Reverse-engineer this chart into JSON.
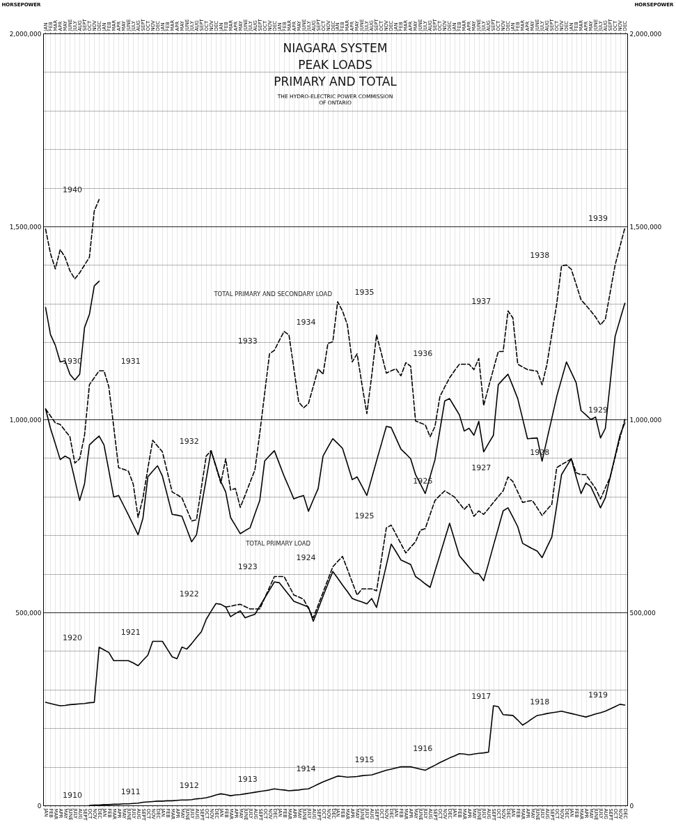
{
  "chart_data": {
    "type": "line",
    "title": "NIAGARA SYSTEM\nPEAK LOADS\nPRIMARY AND TOTAL",
    "subtitle": "THE HYDRO-ELECTRIC POWER COMMISSION\nOF ONTARIO",
    "ylabel": "HORSEPOWER",
    "y2label": "HORSEPOWER",
    "grid": true,
    "categories": [
      "JAN",
      "FEB",
      "MAR",
      "APR",
      "MAY",
      "JUNE",
      "JULY",
      "AUG",
      "SEPT",
      "OCT",
      "NOV",
      "DEC",
      "JAN",
      "FEB",
      "MAR",
      "APR",
      "MAY",
      "JUNE",
      "JULY",
      "AUG",
      "SEPT",
      "OCT",
      "NOV",
      "DEC",
      "JAN",
      "FEB",
      "MAR",
      "APR",
      "MAY",
      "JUNE",
      "JULY",
      "AUG",
      "SEPT",
      "OCT",
      "NOV",
      "DEC",
      "JAN",
      "FEB",
      "MAR",
      "APR",
      "MAY",
      "JUNE",
      "JULY",
      "AUG",
      "SEPT",
      "OCT",
      "NOV",
      "DEC",
      "JAN",
      "FEB",
      "MAR",
      "APR",
      "MAY",
      "JUNE",
      "JULY",
      "AUG",
      "SEPT",
      "OCT",
      "NOV",
      "DEC",
      "JAN",
      "FEB",
      "MAR",
      "APR",
      "MAY",
      "JUNE",
      "JULY",
      "AUG",
      "SEPT",
      "OCT",
      "NOV",
      "DEC",
      "JAN",
      "FEB",
      "MAR",
      "APR",
      "MAY",
      "JUNE",
      "JULY",
      "AUG",
      "SEPT",
      "OCT",
      "NOV",
      "DEC",
      "JAN",
      "FEB",
      "MAR",
      "APR",
      "MAY",
      "JUNE",
      "JULY",
      "AUG",
      "SEPT",
      "OCT",
      "NOV",
      "DEC",
      "JAN",
      "FEB",
      "MAR",
      "APR",
      "MAY",
      "JUNE",
      "JULY",
      "AUG",
      "SEPT",
      "OCT",
      "NOV",
      "DEC",
      "JAN",
      "FEB",
      "MAR",
      "APR",
      "MAY",
      "JUNE",
      "JULY",
      "AUG",
      "SEPT",
      "OCT",
      "NOV",
      "DEC"
    ],
    "ylim": [
      0,
      2000000
    ],
    "y2lim": [
      0,
      2000000
    ],
    "yticks": [
      0,
      {
        "value": 100000,
        "label": null
      },
      {
        "value": 200000,
        "label": null
      },
      {
        "value": 300000,
        "label": null
      },
      {
        "value": 400000,
        "label": null
      },
      {
        "value": 500000,
        "label": "500,000"
      },
      {
        "value": 600000,
        "label": null
      },
      {
        "value": 700000,
        "label": null
      },
      {
        "value": 800000,
        "label": null
      },
      {
        "value": 900000,
        "label": null
      },
      {
        "value": 1000000,
        "label": "1,000,000"
      },
      {
        "value": 1100000,
        "label": null
      },
      {
        "value": 1200000,
        "label": null
      },
      {
        "value": 1300000,
        "label": null
      },
      {
        "value": 1400000,
        "label": null
      },
      {
        "value": 1500000,
        "label": "1,500,000"
      },
      {
        "value": 1600000,
        "label": null
      },
      {
        "value": 1700000,
        "label": null
      },
      {
        "value": 1800000,
        "label": null
      },
      {
        "value": 1900000,
        "label": null
      },
      {
        "value": 2000000,
        "label": "2,000,000"
      }
    ],
    "y2ticks": [
      0,
      {
        "value": 100000,
        "label": null
      },
      {
        "value": 200000,
        "label": null
      },
      {
        "value": 300000,
        "label": null
      },
      {
        "value": 400000,
        "label": null
      },
      {
        "value": 500000,
        "label": "500,000"
      },
      {
        "value": 600000,
        "label": null
      },
      {
        "value": 700000,
        "label": null
      },
      {
        "value": 800000,
        "label": null
      },
      {
        "value": 900000,
        "label": null
      },
      {
        "value": 1000000,
        "label": "1,000,000"
      },
      {
        "value": 1100000,
        "label": null
      },
      {
        "value": 1200000,
        "label": null
      },
      {
        "value": 1300000,
        "label": null
      },
      {
        "value": 1400000,
        "label": null
      },
      {
        "value": 1500000,
        "label": "1,500,000"
      },
      {
        "value": 1600000,
        "label": null
      },
      {
        "value": 1700000,
        "label": null
      },
      {
        "value": 1800000,
        "label": null
      },
      {
        "value": 1900000,
        "label": null
      },
      {
        "value": 2000000,
        "label": "2,000,000"
      }
    ],
    "series": [
      {
        "color": "#000000",
        "line_style": "solid",
        "values": [
          null,
          null,
          null,
          null,
          null,
          null,
          null,
          null,
          null,
          0,
          1000,
          1000,
          2000,
          2000,
          3000,
          3000,
          4000,
          4000,
          5000,
          6000,
          8000,
          9000,
          10000,
          11000,
          11000,
          12000,
          12000,
          13000,
          14000,
          14000,
          15000,
          17000,
          18000,
          20000,
          23000,
          27000,
          30000,
          28000,
          25000,
          27000,
          28000,
          30000,
          32000,
          34000,
          36000,
          38000,
          40000,
          43000,
          41000,
          40000,
          38000,
          39000,
          40000,
          42000,
          43000,
          49000,
          55000,
          61000,
          66000,
          71000,
          76000,
          75000,
          73000,
          74000,
          75000,
          77000,
          78000,
          79000,
          83000,
          87000,
          91000,
          94000,
          97000,
          100000,
          100000,
          100000,
          97000,
          94000,
          91000,
          98000,
          104000,
          111000,
          117000,
          123000,
          128000,
          134000,
          133000,
          131000,
          133000,
          135000,
          136000,
          138000,
          258000,
          256000,
          235000,
          234000,
          233000,
          221000,
          208000,
          216000,
          225000,
          233000,
          235000,
          238000,
          240000,
          242000,
          244000,
          241000,
          238000,
          235000,
          232000,
          229000,
          233000,
          237000,
          240000,
          244000,
          250000,
          256000,
          262000,
          260000
        ]
      },
      {
        "color": "#000000",
        "line_style": "solid",
        "values": [
          267000,
          264000,
          261000,
          258000,
          259000,
          261000,
          262000,
          263000,
          264000,
          266000,
          267000,
          410000,
          403000,
          396000,
          375000,
          375000,
          375000,
          375000,
          369000,
          362000,
          376000,
          389000,
          425000,
          425000,
          425000,
          405000,
          385000,
          380000,
          410000,
          405000,
          419000,
          435000,
          450000,
          482000,
          503000,
          523000,
          521000,
          514000,
          489000,
          497000,
          504000,
          486000,
          491000,
          495000,
          516000,
          537000,
          558000,
          579000,
          577000,
          561000,
          545000,
          529000,
          524000,
          519000,
          514000,
          477000,
          509000,
          542000,
          574000,
          606000,
          589000,
          571000,
          554000,
          536000,
          531000,
          527000,
          522000,
          536000,
          513000,
          568000,
          622000,
          677000,
          657000,
          636000,
          630000,
          624000,
          593000,
          584000,
          574000,
          565000,
          607000,
          648000,
          690000,
          731000,
          689000,
          647000,
          632000,
          617000,
          602000,
          600000,
          582000,
          627000,
          673000,
          718000,
          763000,
          771000,
          747000,
          722000,
          679000,
          672000,
          665000,
          659000,
          642000,
          669000,
          695000,
          776000,
          857000,
          878000,
          898000,
          851000,
          808000,
          835000,
          826000,
          799000,
          771000,
          797000,
          851000,
          905000,
          959000,
          991000
        ]
      },
      {
        "color": "#000000",
        "line_style": "dashed",
        "values": [
          null,
          null,
          null,
          null,
          null,
          null,
          null,
          null,
          null,
          null,
          null,
          null,
          null,
          null,
          null,
          null,
          null,
          null,
          null,
          null,
          null,
          null,
          null,
          null,
          null,
          null,
          null,
          null,
          null,
          null,
          null,
          null,
          null,
          null,
          null,
          null,
          null,
          514000,
          516000,
          519000,
          521000,
          515000,
          509000,
          509000,
          509000,
          537000,
          565000,
          593000,
          593000,
          593000,
          569000,
          545000,
          540000,
          534000,
          510000,
          486000,
          519000,
          552000,
          585000,
          618000,
          632000,
          645000,
          612000,
          578000,
          545000,
          561000,
          561000,
          561000,
          556000,
          638000,
          719000,
          726000,
          702000,
          678000,
          654000,
          669000,
          683000,
          713000,
          717000,
          754000,
          790000,
          803000,
          815000,
          807000,
          799000,
          783000,
          767000,
          780000,
          749000,
          763000,
          754000,
          769000,
          785000,
          800000,
          815000,
          851000,
          839000,
          812000,
          785000,
          788000,
          790000,
          771000,
          751000,
          766000,
          780000,
          875000,
          883000,
          890000,
          898000,
          862000,
          857000,
          857000,
          839000,
          821000,
          794000,
          823000,
          851000,
          902000,
          952000,
          1000000
        ]
      },
      {
        "name": "TOTAL PRIMARY LOAD",
        "color": "#000000",
        "line_style": "solid",
        "values": [
          1027000,
          977000,
          937000,
          896000,
          905000,
          898000,
          844000,
          790000,
          833000,
          934000,
          946000,
          957000,
          934000,
          867000,
          799000,
          803000,
          778000,
          753000,
          727000,
          701000,
          744000,
          851000,
          866000,
          880000,
          853000,
          804000,
          754000,
          752000,
          749000,
          716000,
          683000,
          701000,
          774000,
          846000,
          919000,
          879000,
          839000,
          812000,
          746000,
          725000,
          704000,
          712000,
          719000,
          755000,
          790000,
          892000,
          906000,
          919000,
          886000,
          853000,
          824000,
          794000,
          799000,
          803000,
          762000,
          792000,
          821000,
          905000,
          928000,
          950000,
          938000,
          925000,
          885000,
          844000,
          851000,
          827000,
          803000,
          848000,
          893000,
          937000,
          982000,
          979000,
          951000,
          923000,
          911000,
          898000,
          857000,
          833000,
          808000,
          852000,
          896000,
          972000,
          1048000,
          1054000,
          1033000,
          1012000,
          970000,
          977000,
          959000,
          995000,
          916000,
          938000,
          959000,
          1090000,
          1104000,
          1117000,
          1086000,
          1054000,
          1002000,
          950000,
          951000,
          952000,
          892000,
          948000,
          1003000,
          1059000,
          1104000,
          1149000,
          1122000,
          1095000,
          1023000,
          1012000,
          1000000,
          1006000,
          952000,
          977000,
          1096000,
          1215000,
          1258000,
          1301000
        ]
      },
      {
        "name": "TOTAL PRIMARY AND SECONDARY LOAD",
        "color": "#000000",
        "line_style": "dashed",
        "values": [
          1027000,
          1009000,
          991000,
          987000,
          971000,
          955000,
          887000,
          898000,
          959000,
          1090000,
          1108000,
          1126000,
          1126000,
          1084000,
          980000,
          875000,
          871000,
          866000,
          833000,
          746000,
          797000,
          872000,
          946000,
          931000,
          916000,
          864000,
          812000,
          805000,
          797000,
          767000,
          737000,
          740000,
          823000,
          905000,
          919000,
          877000,
          835000,
          898000,
          817000,
          821000,
          772000,
          804000,
          837000,
          869000,
          964000,
          1067000,
          1170000,
          1179000,
          1204000,
          1228000,
          1219000,
          1132000,
          1045000,
          1030000,
          1041000,
          1086000,
          1131000,
          1117000,
          1197000,
          1201000,
          1305000,
          1281000,
          1245000,
          1149000,
          1170000,
          1090000,
          1015000,
          1114000,
          1219000,
          1170000,
          1120000,
          1126000,
          1131000,
          1113000,
          1147000,
          1138000,
          996000,
          991000,
          986000,
          955000,
          982000,
          1059000,
          1084000,
          1108000,
          1126000,
          1143000,
          1143000,
          1143000,
          1129000,
          1158000,
          1036000,
          1084000,
          1130000,
          1176000,
          1176000,
          1281000,
          1263000,
          1143000,
          1136000,
          1129000,
          1127000,
          1125000,
          1090000,
          1143000,
          1221000,
          1299000,
          1398000,
          1400000,
          1389000,
          1350000,
          1310000,
          1296000,
          1281000,
          1265000,
          1245000,
          1260000,
          1330000,
          1400000,
          1448000,
          1496000
        ]
      },
      {
        "color": "#000000",
        "line_style": "solid",
        "values": [
          1290000,
          1220000,
          1192000,
          1149000,
          1152000,
          1117000,
          1102000,
          1117000,
          1238000,
          1272000,
          1346000,
          1358000,
          null,
          null,
          null,
          null,
          null,
          null,
          null,
          null,
          null,
          null,
          null,
          null,
          null,
          null,
          null,
          null,
          null,
          null,
          null,
          null,
          null,
          null,
          null,
          null,
          null,
          null,
          null,
          null,
          null,
          null,
          null,
          null,
          null,
          null,
          null,
          null,
          null,
          null,
          null,
          null,
          null,
          null,
          null,
          null,
          null,
          null,
          null,
          null,
          null,
          null,
          null,
          null,
          null,
          null,
          null,
          null,
          null,
          null,
          null,
          null,
          null,
          null,
          null,
          null,
          null,
          null,
          null,
          null,
          null,
          null,
          null,
          null,
          null,
          null,
          null,
          null,
          null,
          null,
          null,
          null,
          null,
          null,
          null,
          null,
          null,
          null,
          null,
          null,
          null,
          null,
          null,
          null,
          null,
          null,
          null,
          null,
          null,
          null,
          null,
          null,
          null,
          null,
          null,
          null,
          null,
          null,
          null,
          null
        ]
      },
      {
        "color": "#000000",
        "line_style": "dashed",
        "values": [
          1493000,
          1430000,
          1390000,
          1440000,
          1420000,
          1385000,
          1364000,
          1380000,
          1400000,
          1420000,
          1540000,
          1570000,
          null,
          null,
          null,
          null,
          null,
          null,
          null,
          null,
          null,
          null,
          null,
          null,
          null,
          null,
          null,
          null,
          null,
          null,
          null,
          null,
          null,
          null,
          null,
          null,
          null,
          null,
          null,
          null,
          null,
          null,
          null,
          null,
          null,
          null,
          null,
          null,
          null,
          null,
          null,
          null,
          null,
          null,
          null,
          null,
          null,
          null,
          null,
          null,
          null,
          null,
          null,
          null,
          null,
          null,
          null,
          null,
          null,
          null,
          null,
          null,
          null,
          null,
          null,
          null,
          null,
          null,
          null,
          null,
          null,
          null,
          null,
          null,
          null,
          null,
          null,
          null,
          null,
          null,
          null,
          null,
          null,
          null,
          null,
          null,
          null,
          null,
          null,
          null,
          null,
          null,
          null,
          null,
          null,
          null,
          null,
          null,
          null,
          null,
          null,
          null,
          null,
          null,
          null,
          null,
          null,
          null,
          null,
          null
        ]
      }
    ],
    "annotations": [
      "1910",
      "1911",
      "1912",
      "1913",
      "1914",
      "1915",
      "1916",
      "1917",
      "1918",
      "1919",
      "1920",
      "1921",
      "1922",
      "1923",
      "1924",
      "1925",
      "1926",
      "1927",
      "1928",
      "1929",
      "1930",
      "1931",
      "1932",
      "1933",
      "1934",
      "1935",
      "1936",
      "1937",
      "1938",
      "1939",
      "1940"
    ]
  }
}
